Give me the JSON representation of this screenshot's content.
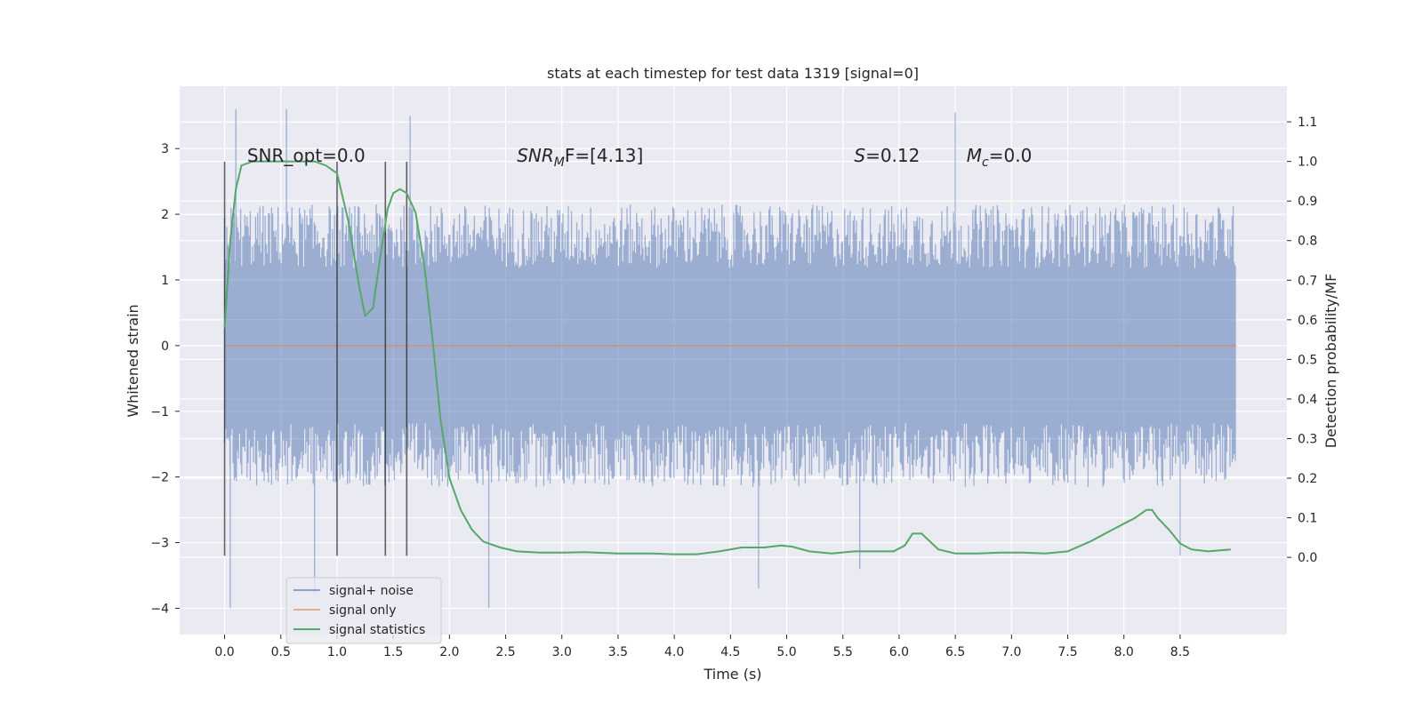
{
  "chart_data": {
    "type": "line",
    "title": "stats at each timestep for test data 1319 [signal=0]",
    "xlabel": "Time (s)",
    "ylabel": "Whitened strain",
    "y2label": "Detection probability/MF",
    "xlim": [
      -0.4,
      9.45
    ],
    "ylim": [
      -4.4,
      3.95
    ],
    "y2lim": [
      -0.195,
      1.19
    ],
    "xticks": [
      "0.0",
      "0.5",
      "1.0",
      "1.5",
      "2.0",
      "2.5",
      "3.0",
      "3.5",
      "4.0",
      "4.5",
      "5.0",
      "5.5",
      "6.0",
      "6.5",
      "7.0",
      "7.5",
      "8.0",
      "8.5"
    ],
    "yticks": [
      "−4",
      "−3",
      "−2",
      "−1",
      "0",
      "1",
      "2",
      "3"
    ],
    "y2ticks": [
      "0.0",
      "0.1",
      "0.2",
      "0.3",
      "0.4",
      "0.5",
      "0.6",
      "0.7",
      "0.8",
      "0.9",
      "1.0",
      "1.1"
    ],
    "grid": true,
    "legend_placement": "lower-left",
    "colors": {
      "background": "#eaeaf2",
      "grid": "#ffffff",
      "noise": "#4c72b0",
      "signal": "#dd8452",
      "stats": "#55a868",
      "marker": "#222222"
    },
    "annotations": [
      {
        "id": "snr-opt",
        "text": "SNR_opt=0.0",
        "x": 0.2,
        "y": 2.8
      },
      {
        "id": "snr-mf",
        "base": "SNR",
        "sub": "M",
        "rest": "F=[4.13]",
        "x": 2.6,
        "y": 2.8
      },
      {
        "id": "s",
        "base": "S",
        "sub": "",
        "rest": "=0.12",
        "x": 5.6,
        "y": 2.8
      },
      {
        "id": "mc",
        "base": "M",
        "sub": "c",
        "rest": "=0.0",
        "x": 6.6,
        "y": 2.8
      }
    ],
    "markers": [
      0.0,
      1.0,
      1.43,
      1.62
    ],
    "marker_range": [
      -3.2,
      2.8
    ],
    "series": [
      {
        "name": "signal+ noise",
        "color": "#4c72b0",
        "kind": "noise",
        "x_start": 0.0,
        "x_end": 9.0,
        "band": 2.15,
        "peaks": [
          [
            0.1,
            3.6
          ],
          [
            0.05,
            -4.0
          ],
          [
            0.55,
            3.6
          ],
          [
            0.8,
            -3.8
          ],
          [
            1.65,
            3.5
          ],
          [
            2.35,
            -4.0
          ],
          [
            4.75,
            -3.7
          ],
          [
            5.65,
            -3.4
          ],
          [
            6.5,
            3.55
          ],
          [
            8.5,
            -3.2
          ]
        ]
      },
      {
        "name": "signal only",
        "color": "#dd8452",
        "kind": "flat",
        "x": [
          0.0,
          9.0
        ],
        "y": [
          0.0,
          0.0
        ]
      },
      {
        "name": "signal statistics",
        "color": "#55a868",
        "kind": "stats",
        "x": [
          0.0,
          0.05,
          0.1,
          0.15,
          0.25,
          0.4,
          0.55,
          0.7,
          0.8,
          0.9,
          1.0,
          1.1,
          1.2,
          1.25,
          1.32,
          1.38,
          1.45,
          1.5,
          1.56,
          1.62,
          1.7,
          1.78,
          1.85,
          1.92,
          2.0,
          2.1,
          2.2,
          2.3,
          2.45,
          2.6,
          2.8,
          3.0,
          3.2,
          3.5,
          3.8,
          4.0,
          4.2,
          4.4,
          4.6,
          4.8,
          4.95,
          5.05,
          5.2,
          5.4,
          5.6,
          5.8,
          5.95,
          6.05,
          6.12,
          6.2,
          6.35,
          6.5,
          6.7,
          6.9,
          7.1,
          7.3,
          7.5,
          7.7,
          7.9,
          8.1,
          8.2,
          8.25,
          8.3,
          8.4,
          8.5,
          8.6,
          8.75,
          8.95
        ],
        "y": [
          0.58,
          0.8,
          0.93,
          0.99,
          1.0,
          1.0,
          1.0,
          1.0,
          1.0,
          0.99,
          0.97,
          0.85,
          0.68,
          0.61,
          0.63,
          0.75,
          0.88,
          0.92,
          0.93,
          0.92,
          0.87,
          0.73,
          0.55,
          0.35,
          0.2,
          0.12,
          0.07,
          0.04,
          0.025,
          0.015,
          0.012,
          0.012,
          0.013,
          0.01,
          0.01,
          0.008,
          0.008,
          0.015,
          0.025,
          0.025,
          0.03,
          0.027,
          0.015,
          0.01,
          0.015,
          0.015,
          0.015,
          0.03,
          0.06,
          0.06,
          0.02,
          0.01,
          0.01,
          0.012,
          0.012,
          0.01,
          0.015,
          0.04,
          0.07,
          0.1,
          0.12,
          0.12,
          0.1,
          0.07,
          0.035,
          0.02,
          0.015,
          0.02
        ]
      }
    ]
  }
}
